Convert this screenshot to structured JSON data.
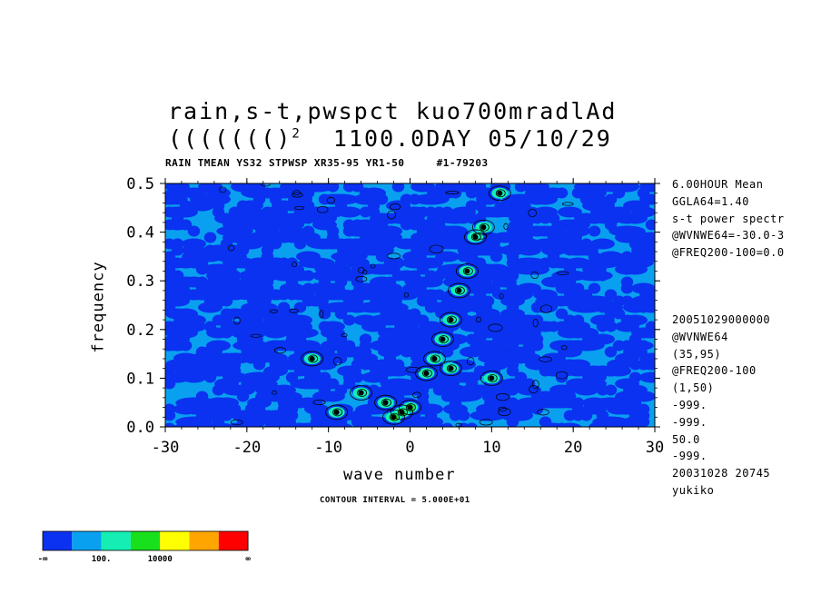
{
  "header": {
    "title_line1": "rain,s-t,pwspct  kuo700mradlAd",
    "title_line2_prefix": "((((((()",
    "title_line2_sup": "2",
    "title_line2_suffix": "1100.0DAY 05/10/29",
    "subtitle_left": "RAIN TMEAN YS32 STPWSP XR35-95 YR1-50",
    "subtitle_right": "#1-79203"
  },
  "side_info": {
    "top": [
      "6.00HOUR Mean",
      "GGLA64=1.40",
      "s-t power spectr",
      "@WVNWE64=-30.0-3",
      "@FREQ200-100=0.0"
    ],
    "bottom": [
      "20051029000000",
      "@WVNWE64",
      "(35,95)",
      "@FREQ200-100",
      "(1,50)",
      "-999.",
      "-999.",
      "50.0",
      "-999.",
      "20031028  20745",
      "yukiko"
    ]
  },
  "contour_interval": "CONTOUR INTERVAL = 5.000E+01",
  "colors": {
    "dark_blue": "#0a32f0",
    "light_blue": "#0aa0f0",
    "aqua": "#14eeb4",
    "green": "#18e01c",
    "yellow": "#ffff00",
    "orange": "#ffa500",
    "red": "#ff0000"
  },
  "chart_data": {
    "type": "heatmap",
    "title": "rain,s-t,pwspct  kuo700mradlAd",
    "xlabel": "wave number",
    "ylabel": "frequency",
    "xlim": [
      -30,
      30
    ],
    "ylim": [
      0,
      0.5
    ],
    "xticks": [
      -30,
      -20,
      -10,
      0,
      10,
      20,
      30
    ],
    "xtick_labels": [
      "-30",
      "-20",
      "-10",
      "0",
      "10",
      "20",
      "30"
    ],
    "yticks": [
      0,
      0.1,
      0.2,
      0.3,
      0.4,
      0.5
    ],
    "ytick_labels": [
      "0.0",
      "0.1",
      "0.2",
      "0.3",
      "0.4",
      "0.5"
    ],
    "colorbar": {
      "levels": [
        "-∞",
        "100.",
        "10000",
        "∞"
      ],
      "colors": [
        "#0a32f0",
        "#0aa0f0",
        "#14eeb4",
        "#18e01c",
        "#ffff00",
        "#ffa500",
        "#ff0000"
      ]
    },
    "peaks": [
      {
        "k": -1,
        "f": 0.03,
        "level": "green"
      },
      {
        "k": -2,
        "f": 0.02,
        "level": "green"
      },
      {
        "k": 0,
        "f": 0.04,
        "level": "green"
      },
      {
        "k": -3,
        "f": 0.05,
        "level": "aqua"
      },
      {
        "k": -9,
        "f": 0.03,
        "level": "aqua"
      },
      {
        "k": -6,
        "f": 0.07,
        "level": "aqua"
      },
      {
        "k": 2,
        "f": 0.11,
        "level": "aqua"
      },
      {
        "k": 3,
        "f": 0.14,
        "level": "aqua"
      },
      {
        "k": 4,
        "f": 0.18,
        "level": "aqua"
      },
      {
        "k": 5,
        "f": 0.22,
        "level": "aqua"
      },
      {
        "k": 6,
        "f": 0.28,
        "level": "aqua"
      },
      {
        "k": 7,
        "f": 0.32,
        "level": "aqua"
      },
      {
        "k": 8,
        "f": 0.39,
        "level": "aqua"
      },
      {
        "k": 9,
        "f": 0.41,
        "level": "aqua"
      },
      {
        "k": 11,
        "f": 0.48,
        "level": "aqua"
      },
      {
        "k": 5,
        "f": 0.12,
        "level": "aqua"
      },
      {
        "k": -12,
        "f": 0.14,
        "level": "aqua"
      },
      {
        "k": 10,
        "f": 0.1,
        "level": "aqua"
      }
    ]
  }
}
